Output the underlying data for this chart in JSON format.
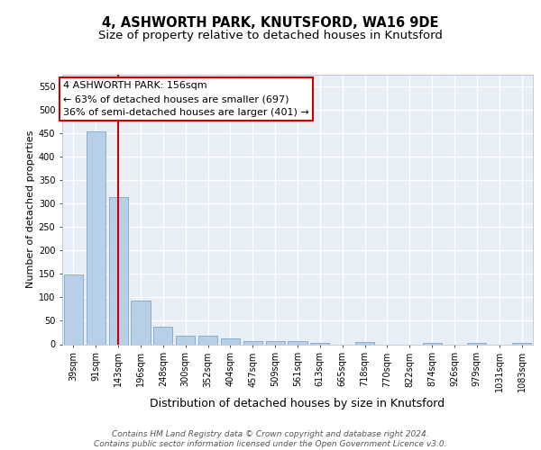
{
  "title1": "4, ASHWORTH PARK, KNUTSFORD, WA16 9DE",
  "title2": "Size of property relative to detached houses in Knutsford",
  "xlabel": "Distribution of detached houses by size in Knutsford",
  "ylabel": "Number of detached properties",
  "categories": [
    "39sqm",
    "91sqm",
    "143sqm",
    "196sqm",
    "248sqm",
    "300sqm",
    "352sqm",
    "404sqm",
    "457sqm",
    "509sqm",
    "561sqm",
    "613sqm",
    "665sqm",
    "718sqm",
    "770sqm",
    "822sqm",
    "874sqm",
    "926sqm",
    "979sqm",
    "1031sqm",
    "1083sqm"
  ],
  "values": [
    148,
    453,
    313,
    93,
    38,
    18,
    19,
    12,
    6,
    7,
    6,
    3,
    0,
    4,
    0,
    0,
    3,
    0,
    3,
    0,
    3
  ],
  "bar_color": "#b8cfe8",
  "bar_edge_color": "#7da6cc",
  "vline_x_idx": 2,
  "vline_color": "#cc0000",
  "annotation_text": "4 ASHWORTH PARK: 156sqm\n← 63% of detached houses are smaller (697)\n36% of semi-detached houses are larger (401) →",
  "annotation_box_facecolor": "#ffffff",
  "annotation_box_edgecolor": "#cc0000",
  "ylim": [
    0,
    575
  ],
  "yticks": [
    0,
    50,
    100,
    150,
    200,
    250,
    300,
    350,
    400,
    450,
    500,
    550
  ],
  "plot_bg_color": "#e8eef6",
  "grid_color": "#ffffff",
  "footer_text": "Contains HM Land Registry data © Crown copyright and database right 2024.\nContains public sector information licensed under the Open Government Licence v3.0.",
  "title1_fontsize": 10.5,
  "title2_fontsize": 9.5,
  "xlabel_fontsize": 9,
  "ylabel_fontsize": 8,
  "tick_fontsize": 7,
  "annotation_fontsize": 8,
  "footer_fontsize": 6.5
}
